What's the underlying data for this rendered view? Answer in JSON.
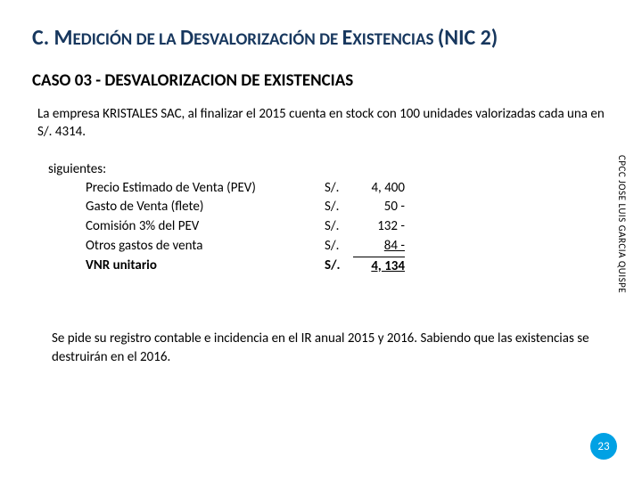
{
  "title_parts": {
    "prefix": "C. M",
    "word1": "EDICIÓN DE LA ",
    "d": "D",
    "word2": "ESVALORIZACIÓN DE ",
    "e": "E",
    "word3": "XISTENCIAS ",
    "paren": "(NIC 2)"
  },
  "subtitle": "CASO 03 - DESVALORIZACION DE EXISTENCIAS",
  "intro": "La empresa KRISTALES SAC, al finalizar el 2015 cuenta en stock con 100 unidades valorizadas cada una en S/. 4314.",
  "calc": {
    "heading": "siguientes:",
    "rows": [
      {
        "label": "Precio Estimado de Venta (PEV)",
        "cur": "S/.",
        "val": "4, 400",
        "bold": false,
        "sumline": false
      },
      {
        "label": "Gasto de Venta (flete)",
        "cur": "S/.",
        "val": "50 -",
        "bold": false,
        "sumline": false
      },
      {
        "label": "Comisión 3% del PEV",
        "cur": "S/.",
        "val": "132 -",
        "bold": false,
        "sumline": false
      },
      {
        "label": "Otros gastos de venta",
        "cur": "S/.",
        "val": "84 -",
        "bold": false,
        "sumline": false,
        "underline_val": true
      },
      {
        "label": "VNR unitario",
        "cur": "S/.",
        "val": "4, 134",
        "bold": true,
        "sumline": true,
        "underline_val": true
      }
    ]
  },
  "footer": "Se pide su registro contable e incidencia en el IR anual 2015 y 2016. Sabiendo que las existencias se destruirán en el 2016.",
  "author": "CPCC JOSE LUIS GARCIA QUISPE",
  "page": "23",
  "colors": {
    "title": "#17375e",
    "badge_bg": "#00a1e4",
    "badge_fg": "#ffffff"
  }
}
